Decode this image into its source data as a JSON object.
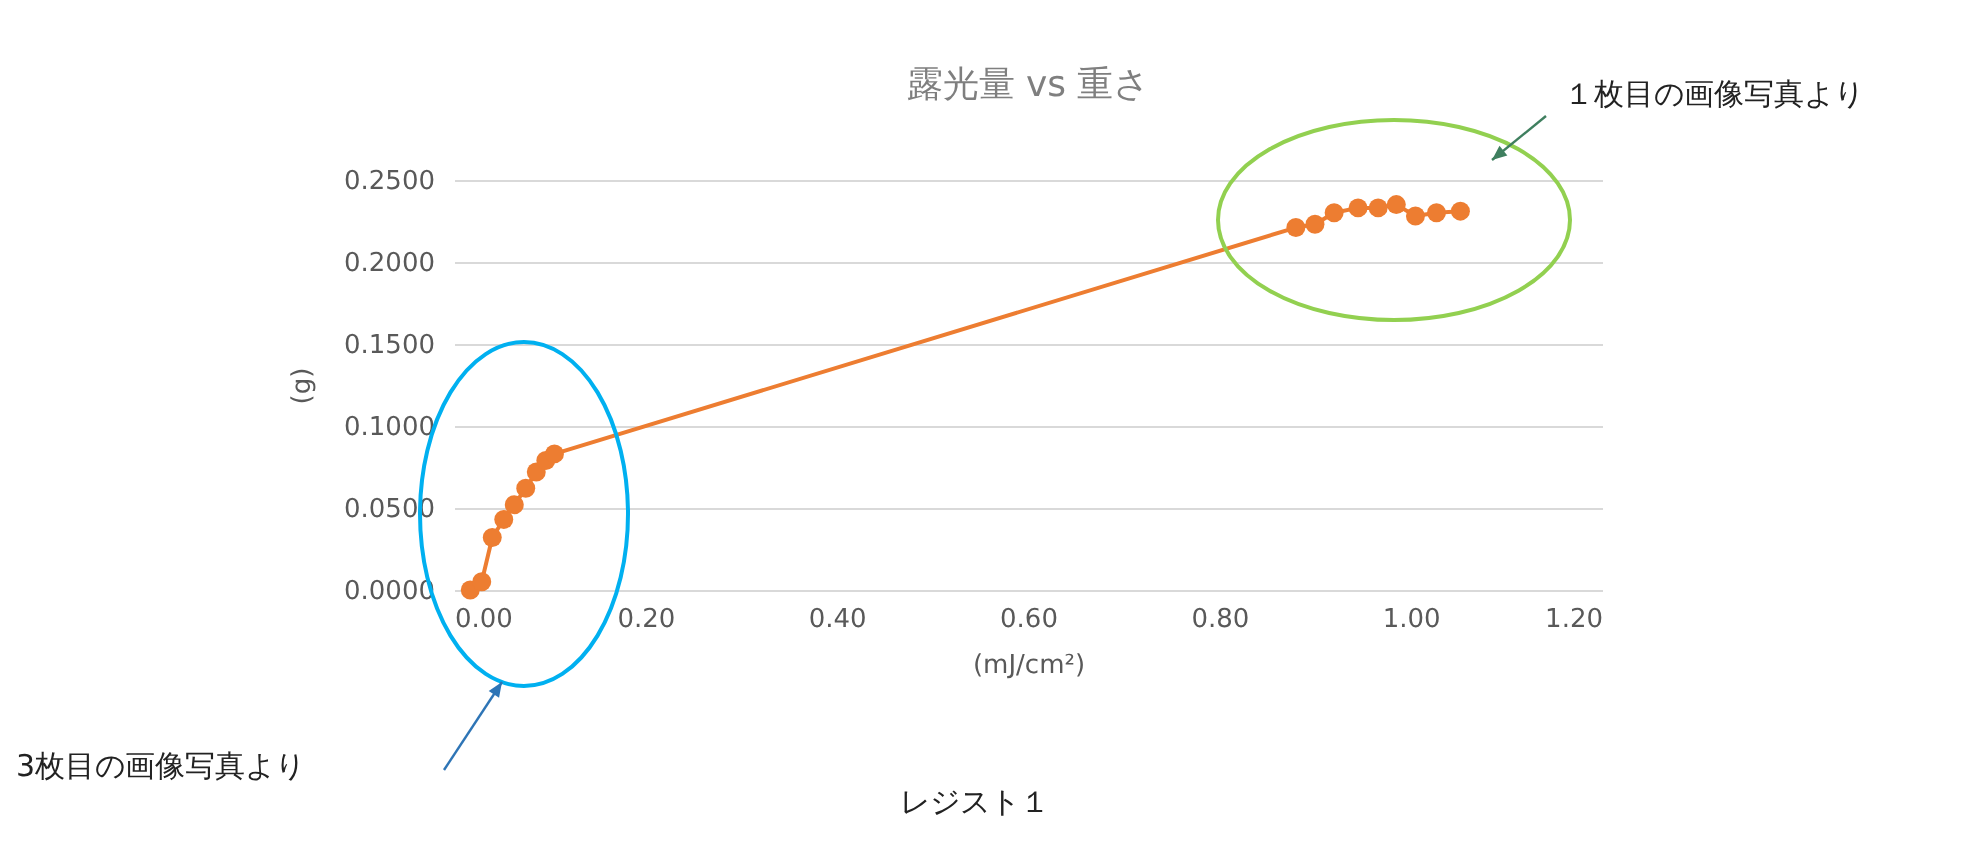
{
  "chart_data": {
    "type": "line",
    "title": "露光量 vs 重さ",
    "xlabel": "(mJ/cm²)",
    "ylabel": "(g)",
    "x": [
      0.017,
      0.029,
      0.04,
      0.052,
      0.063,
      0.075,
      0.086,
      0.096,
      0.105,
      0.88,
      0.9,
      0.92,
      0.945,
      0.966,
      0.985,
      1.005,
      1.027,
      1.052
    ],
    "series": [
      {
        "color": "#ed7d31",
        "values": [
          0.0,
          0.005,
          0.032,
          0.043,
          0.052,
          0.062,
          0.072,
          0.079,
          0.083,
          0.221,
          0.223,
          0.23,
          0.233,
          0.233,
          0.235,
          0.228,
          0.23,
          0.231
        ]
      }
    ],
    "xlim": [
      0,
      1.2
    ],
    "ylim": [
      0,
      0.25
    ],
    "xticks": [
      {
        "value": 0,
        "label": "0.00"
      },
      {
        "value": 0.2,
        "label": "0.20"
      },
      {
        "value": 0.4,
        "label": "0.40"
      },
      {
        "value": 0.6,
        "label": "0.60"
      },
      {
        "value": 0.8,
        "label": "0.80"
      },
      {
        "value": 1,
        "label": "1.00"
      },
      {
        "value": 1.2,
        "label": "1.20"
      }
    ],
    "yticks": [
      {
        "value": 0,
        "label": "0.0000"
      },
      {
        "value": 0.05,
        "label": "0.0500"
      },
      {
        "value": 0.1,
        "label": "0.1000"
      },
      {
        "value": 0.15,
        "label": "0.1500"
      },
      {
        "value": 0.2,
        "label": "0.2000"
      },
      {
        "value": 0.25,
        "label": "0.2500"
      }
    ],
    "grid": "y",
    "marker": "circle",
    "line_style": "solid",
    "annotations": [
      "１枚目の画像写真より",
      "3枚目の画像写真より",
      "レジスト１"
    ]
  }
}
